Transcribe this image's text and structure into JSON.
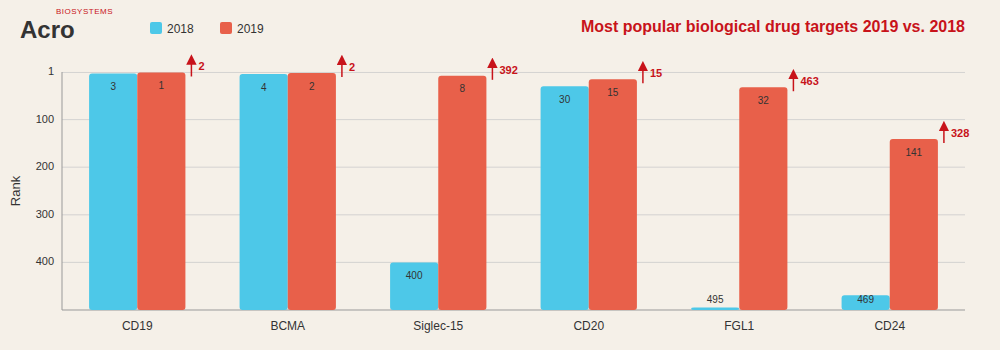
{
  "chart_data": {
    "type": "bar",
    "title": "Most popular biological drug targets 2019 vs. 2018",
    "y_label": "Rank",
    "annotations": [
      "Acro",
      "BIOSYSTEMS"
    ],
    "categories": [
      "CD19",
      "BCMA",
      "Siglec-15",
      "CD20",
      "FGL1",
      "CD24"
    ],
    "series": [
      {
        "name": "2018",
        "color": "#4DC8E8",
        "values": [
          3,
          4,
          400,
          30,
          495,
          469
        ]
      },
      {
        "name": "2019",
        "color": "#E8604A",
        "values": [
          1,
          2,
          8,
          15,
          32,
          141
        ],
        "improvement": [
          2,
          2,
          392,
          15,
          463,
          328
        ]
      }
    ],
    "ylim": [
      500,
      0
    ],
    "yticks": [
      1,
      100,
      200,
      300,
      400
    ],
    "grid": true,
    "legend": "upper left",
    "data_labels": true
  }
}
